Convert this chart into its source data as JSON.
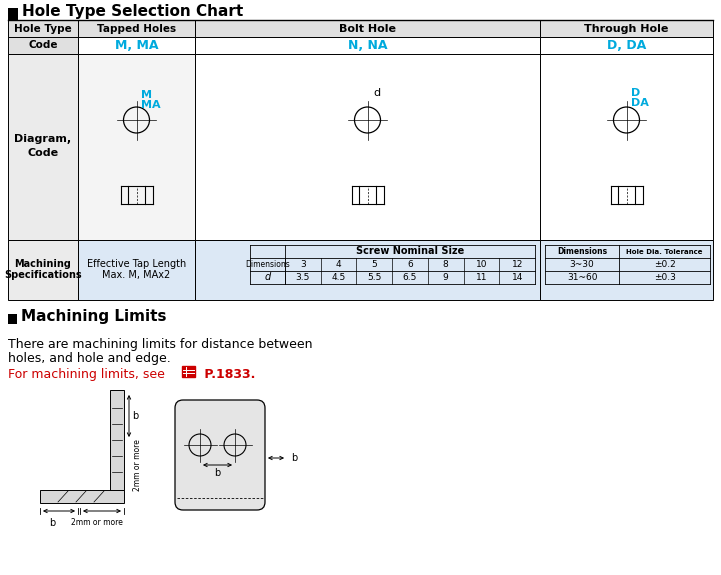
{
  "title": "Hole Type Selection Chart",
  "bg_color": "#ffffff",
  "cyan_color": "#00aadd",
  "red_color": "#cc0000",
  "col1_header": "Hole Type",
  "col2_header": "Tapped Holes",
  "col3_header": "Bolt Hole",
  "col4_header": "Through Hole",
  "code_row": [
    "Code",
    "M, MA",
    "N, NA",
    "D, DA"
  ],
  "machining_title": "Machining Limits",
  "machining_text1": "There are machining limits for distance between",
  "machining_text2": "holes, and hole and edge.",
  "machining_ref": "For machining limits, see",
  "machining_page": " P.1833.",
  "screw_sizes": [
    "3",
    "4",
    "5",
    "6",
    "8",
    "10",
    "12"
  ],
  "d_values": [
    "3.5",
    "4.5",
    "5.5",
    "6.5",
    "9",
    "11",
    "14"
  ],
  "dim_ranges": [
    "3~30",
    "31~60"
  ],
  "tolerances": [
    "±0.2",
    "±0.3"
  ]
}
